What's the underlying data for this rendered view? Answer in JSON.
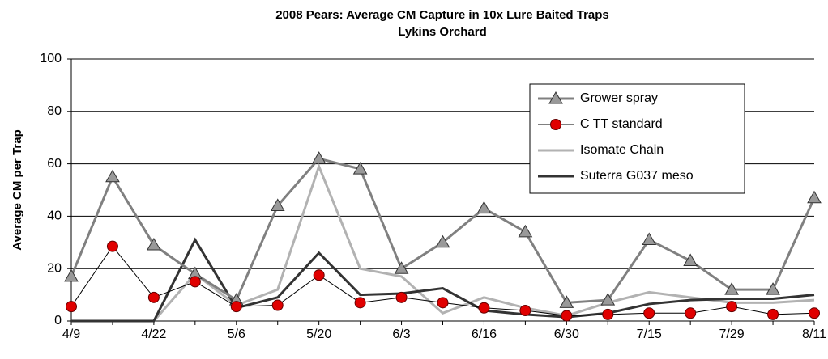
{
  "chart_data": {
    "type": "line",
    "title": "2008 Pears: Average CM Capture in 10x Lure Baited Traps",
    "subtitle": "Lykins Orchard",
    "y_label": "Average CM per Trap",
    "categories": [
      "4/9",
      null,
      "4/22",
      null,
      "5/6",
      null,
      "5/20",
      null,
      "6/3",
      null,
      "6/16",
      null,
      "6/30",
      null,
      "7/15",
      null,
      "7/29",
      null,
      "8/11"
    ],
    "series": [
      {
        "name": "Grower spray",
        "color": "#808080",
        "marker": "triangle",
        "values": [
          17,
          55,
          29,
          18,
          8,
          44,
          62,
          58,
          20,
          30,
          43,
          34,
          7,
          8,
          31,
          23,
          12,
          12,
          47
        ]
      },
      {
        "name": "C TT standard",
        "color": "#000000",
        "marker": "circle",
        "values": [
          5.5,
          28.5,
          9,
          15,
          5.5,
          6,
          17.5,
          7,
          9,
          7,
          5,
          4,
          2,
          2.5,
          3,
          3,
          5.5,
          2.5,
          3
        ]
      },
      {
        "name": "Isomate Chain",
        "color": "#b2b2b2",
        "values": [
          0,
          0,
          0,
          18,
          6,
          12,
          59,
          20,
          17,
          3,
          9,
          5,
          2,
          7,
          11,
          9,
          7,
          7,
          8
        ]
      },
      {
        "name": "Suterra G037 meso",
        "color": "#333333",
        "values": [
          0,
          0,
          0,
          31,
          5,
          9,
          26,
          10,
          10.5,
          12.5,
          4,
          2.5,
          1.5,
          3,
          6.5,
          8,
          8.5,
          8.5,
          10
        ]
      }
    ],
    "ylim": [
      0,
      100
    ],
    "yticks": [
      0,
      20,
      40,
      60,
      80,
      100
    ],
    "grid": true
  }
}
